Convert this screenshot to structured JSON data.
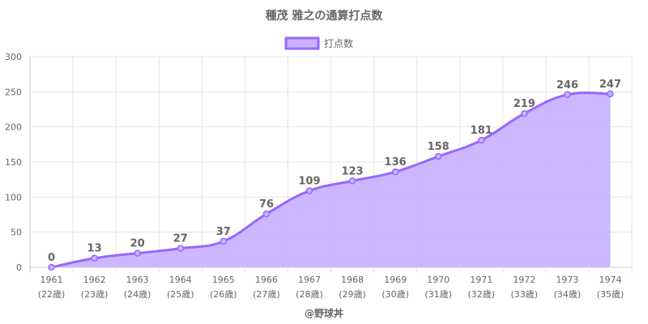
{
  "chart_data": {
    "type": "area",
    "title": "種茂 雅之の通算打点数",
    "categories": [
      "1961",
      "1962",
      "1963",
      "1964",
      "1965",
      "1966",
      "1967",
      "1968",
      "1969",
      "1970",
      "1971",
      "1972",
      "1973",
      "1974"
    ],
    "sublabels": [
      "(22歳)",
      "(23歳)",
      "(24歳)",
      "(25歳)",
      "(26歳)",
      "(27歳)",
      "(28歳)",
      "(29歳)",
      "(30歳)",
      "(31歳)",
      "(32歳)",
      "(33歳)",
      "(34歳)",
      "(35歳)"
    ],
    "series": [
      {
        "name": "打点数",
        "values": [
          0,
          13,
          20,
          27,
          37,
          76,
          109,
          123,
          136,
          158,
          181,
          219,
          246,
          247
        ]
      }
    ],
    "ylim": [
      0,
      300
    ],
    "yticks": [
      0,
      50,
      100,
      150,
      200,
      250,
      300
    ],
    "grid": true,
    "legend_position": "top-center",
    "colors": {
      "line": "#9966ff",
      "fill": "#c9b3ff",
      "grid": "#e5e5e5",
      "axis": "#cccccc",
      "text": "#666666"
    },
    "credit": "@野球丼"
  }
}
